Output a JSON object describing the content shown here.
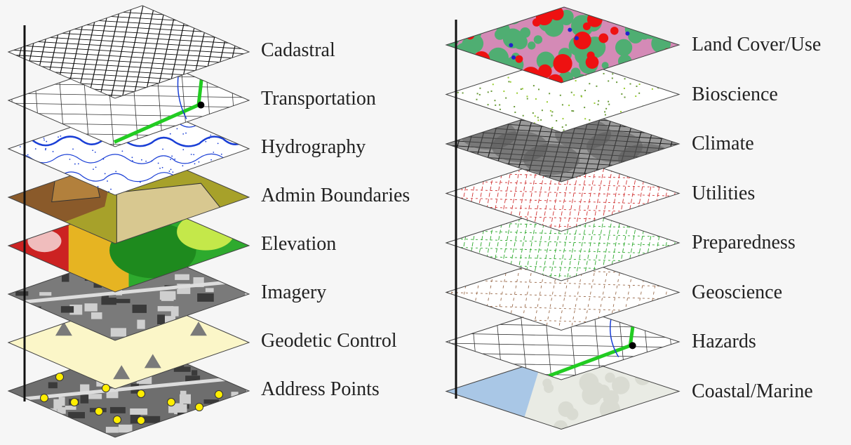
{
  "left_stack": {
    "layers": [
      {
        "label": "Cadastral",
        "style": "streets-white"
      },
      {
        "label": "Transportation",
        "style": "roads-map"
      },
      {
        "label": "Hydrography",
        "style": "rivers-blue"
      },
      {
        "label": "Admin Boundaries",
        "style": "admin-brown"
      },
      {
        "label": "Elevation",
        "style": "elevation-heat"
      },
      {
        "label": "Imagery",
        "style": "aerial-gray"
      },
      {
        "label": "Geodetic Control",
        "style": "triangles-cream"
      },
      {
        "label": "Address Points",
        "style": "aerial-yellow-dots"
      }
    ]
  },
  "right_stack": {
    "layers": [
      {
        "label": "Land Cover/Use",
        "style": "landcover-pink-green"
      },
      {
        "label": "Bioscience",
        "style": "speckle-green"
      },
      {
        "label": "Climate",
        "style": "gray-contours"
      },
      {
        "label": "Utilities",
        "style": "grid-red"
      },
      {
        "label": "Preparedness",
        "style": "grid-green"
      },
      {
        "label": "Geoscience",
        "style": "grid-brown"
      },
      {
        "label": "Hazards",
        "style": "roads-map"
      },
      {
        "label": "Coastal/Marine",
        "style": "coastal-blue"
      }
    ]
  },
  "colors": {
    "axis": "#111111",
    "label": "#222222",
    "highway": "#22cc22",
    "river": "#1a3fd6",
    "address_dot": "#ffee00",
    "triangle": "#7a7a7a",
    "cream": "#fbf6c8"
  }
}
